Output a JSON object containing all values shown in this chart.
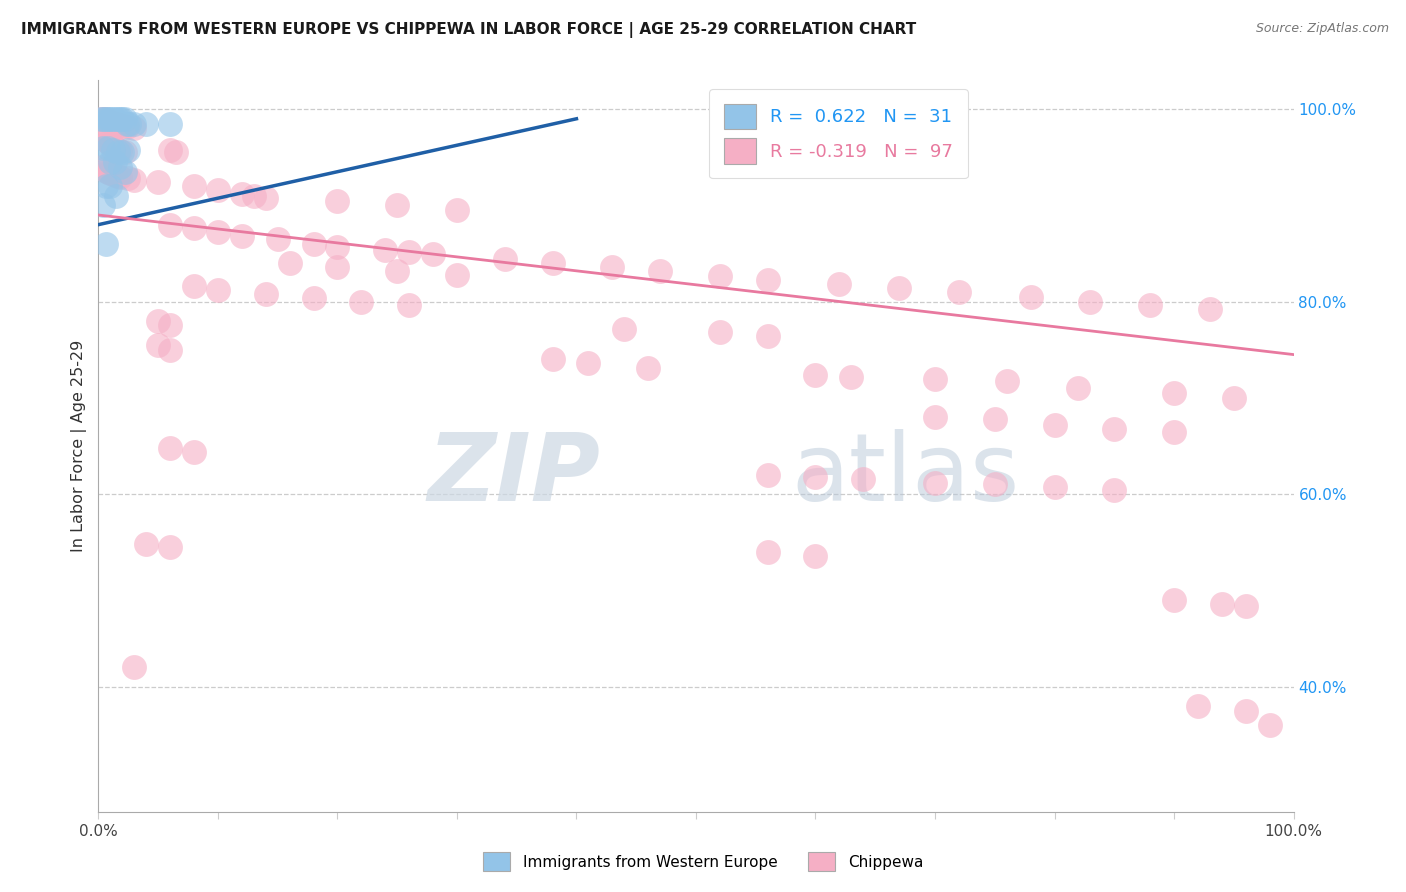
{
  "title": "IMMIGRANTS FROM WESTERN EUROPE VS CHIPPEWA IN LABOR FORCE | AGE 25-29 CORRELATION CHART",
  "source": "Source: ZipAtlas.com",
  "ylabel": "In Labor Force | Age 25-29",
  "xlim": [
    0.0,
    1.0
  ],
  "ylim": [
    0.27,
    1.03
  ],
  "yticks": [
    0.4,
    0.6,
    0.8,
    1.0
  ],
  "ytick_labels": [
    "40.0%",
    "60.0%",
    "80.0%",
    "100.0%"
  ],
  "xtick_positions": [
    0.0,
    0.1,
    0.2,
    0.3,
    0.4,
    0.5,
    0.6,
    0.7,
    0.8,
    0.9,
    1.0
  ],
  "grid_color": "#cccccc",
  "background_color": "#ffffff",
  "watermark_zip": "ZIP",
  "watermark_atlas": "atlas",
  "legend_R_blue": "0.622",
  "legend_N_blue": "31",
  "legend_R_pink": "-0.319",
  "legend_N_pink": "97",
  "blue_color": "#93c4e8",
  "pink_color": "#f5afc5",
  "blue_line_color": "#1f5fa6",
  "pink_line_color": "#e8799f",
  "blue_scatter": [
    [
      0.002,
      0.99
    ],
    [
      0.004,
      0.99
    ],
    [
      0.006,
      0.99
    ],
    [
      0.008,
      0.99
    ],
    [
      0.01,
      0.99
    ],
    [
      0.012,
      0.99
    ],
    [
      0.014,
      0.99
    ],
    [
      0.016,
      0.99
    ],
    [
      0.018,
      0.99
    ],
    [
      0.02,
      0.99
    ],
    [
      0.022,
      0.99
    ],
    [
      0.024,
      0.985
    ],
    [
      0.026,
      0.985
    ],
    [
      0.03,
      0.985
    ],
    [
      0.04,
      0.985
    ],
    [
      0.06,
      0.985
    ],
    [
      0.004,
      0.96
    ],
    [
      0.008,
      0.96
    ],
    [
      0.012,
      0.958
    ],
    [
      0.016,
      0.955
    ],
    [
      0.02,
      0.955
    ],
    [
      0.025,
      0.958
    ],
    [
      0.01,
      0.945
    ],
    [
      0.014,
      0.945
    ],
    [
      0.018,
      0.94
    ],
    [
      0.022,
      0.935
    ],
    [
      0.006,
      0.92
    ],
    [
      0.01,
      0.92
    ],
    [
      0.015,
      0.91
    ],
    [
      0.004,
      0.9
    ],
    [
      0.006,
      0.86
    ]
  ],
  "pink_scatter": [
    [
      0.002,
      0.99
    ],
    [
      0.004,
      0.99
    ],
    [
      0.006,
      0.99
    ],
    [
      0.008,
      0.988
    ],
    [
      0.01,
      0.987
    ],
    [
      0.012,
      0.986
    ],
    [
      0.014,
      0.985
    ],
    [
      0.016,
      0.985
    ],
    [
      0.018,
      0.984
    ],
    [
      0.02,
      0.983
    ],
    [
      0.022,
      0.982
    ],
    [
      0.024,
      0.981
    ],
    [
      0.03,
      0.98
    ],
    [
      0.002,
      0.972
    ],
    [
      0.004,
      0.97
    ],
    [
      0.006,
      0.968
    ],
    [
      0.008,
      0.966
    ],
    [
      0.01,
      0.964
    ],
    [
      0.012,
      0.962
    ],
    [
      0.014,
      0.96
    ],
    [
      0.016,
      0.958
    ],
    [
      0.018,
      0.956
    ],
    [
      0.022,
      0.955
    ],
    [
      0.06,
      0.958
    ],
    [
      0.065,
      0.955
    ],
    [
      0.002,
      0.94
    ],
    [
      0.004,
      0.938
    ],
    [
      0.006,
      0.936
    ],
    [
      0.008,
      0.935
    ],
    [
      0.01,
      0.934
    ],
    [
      0.012,
      0.933
    ],
    [
      0.014,
      0.932
    ],
    [
      0.016,
      0.931
    ],
    [
      0.018,
      0.93
    ],
    [
      0.025,
      0.928
    ],
    [
      0.03,
      0.926
    ],
    [
      0.05,
      0.924
    ],
    [
      0.08,
      0.92
    ],
    [
      0.1,
      0.916
    ],
    [
      0.12,
      0.912
    ],
    [
      0.13,
      0.91
    ],
    [
      0.14,
      0.908
    ],
    [
      0.2,
      0.905
    ],
    [
      0.25,
      0.9
    ],
    [
      0.3,
      0.895
    ],
    [
      0.06,
      0.88
    ],
    [
      0.08,
      0.877
    ],
    [
      0.1,
      0.872
    ],
    [
      0.12,
      0.868
    ],
    [
      0.15,
      0.865
    ],
    [
      0.18,
      0.86
    ],
    [
      0.2,
      0.857
    ],
    [
      0.24,
      0.854
    ],
    [
      0.26,
      0.852
    ],
    [
      0.28,
      0.85
    ],
    [
      0.34,
      0.844
    ],
    [
      0.38,
      0.84
    ],
    [
      0.43,
      0.836
    ],
    [
      0.47,
      0.832
    ],
    [
      0.52,
      0.827
    ],
    [
      0.56,
      0.823
    ],
    [
      0.62,
      0.818
    ],
    [
      0.67,
      0.814
    ],
    [
      0.72,
      0.81
    ],
    [
      0.78,
      0.805
    ],
    [
      0.83,
      0.8
    ],
    [
      0.88,
      0.796
    ],
    [
      0.93,
      0.792
    ],
    [
      0.16,
      0.84
    ],
    [
      0.2,
      0.836
    ],
    [
      0.25,
      0.832
    ],
    [
      0.3,
      0.828
    ],
    [
      0.08,
      0.816
    ],
    [
      0.1,
      0.812
    ],
    [
      0.14,
      0.808
    ],
    [
      0.18,
      0.804
    ],
    [
      0.22,
      0.8
    ],
    [
      0.26,
      0.796
    ],
    [
      0.05,
      0.78
    ],
    [
      0.06,
      0.776
    ],
    [
      0.44,
      0.772
    ],
    [
      0.52,
      0.768
    ],
    [
      0.56,
      0.764
    ],
    [
      0.05,
      0.755
    ],
    [
      0.06,
      0.75
    ],
    [
      0.38,
      0.74
    ],
    [
      0.41,
      0.736
    ],
    [
      0.46,
      0.731
    ],
    [
      0.6,
      0.724
    ],
    [
      0.63,
      0.722
    ],
    [
      0.7,
      0.72
    ],
    [
      0.76,
      0.718
    ],
    [
      0.82,
      0.71
    ],
    [
      0.9,
      0.705
    ],
    [
      0.95,
      0.7
    ],
    [
      0.7,
      0.68
    ],
    [
      0.75,
      0.678
    ],
    [
      0.8,
      0.672
    ],
    [
      0.85,
      0.668
    ],
    [
      0.9,
      0.665
    ],
    [
      0.06,
      0.648
    ],
    [
      0.08,
      0.644
    ],
    [
      0.56,
      0.62
    ],
    [
      0.6,
      0.618
    ],
    [
      0.64,
      0.616
    ],
    [
      0.7,
      0.612
    ],
    [
      0.75,
      0.61
    ],
    [
      0.8,
      0.607
    ],
    [
      0.85,
      0.604
    ],
    [
      0.04,
      0.548
    ],
    [
      0.06,
      0.545
    ],
    [
      0.56,
      0.54
    ],
    [
      0.6,
      0.536
    ],
    [
      0.9,
      0.49
    ],
    [
      0.94,
      0.486
    ],
    [
      0.96,
      0.484
    ],
    [
      0.03,
      0.42
    ],
    [
      0.92,
      0.38
    ],
    [
      0.96,
      0.375
    ],
    [
      0.98,
      0.36
    ]
  ],
  "blue_line": [
    [
      0.0,
      0.88
    ],
    [
      0.4,
      0.99
    ]
  ],
  "pink_line": [
    [
      0.0,
      0.89
    ],
    [
      1.0,
      0.745
    ]
  ]
}
